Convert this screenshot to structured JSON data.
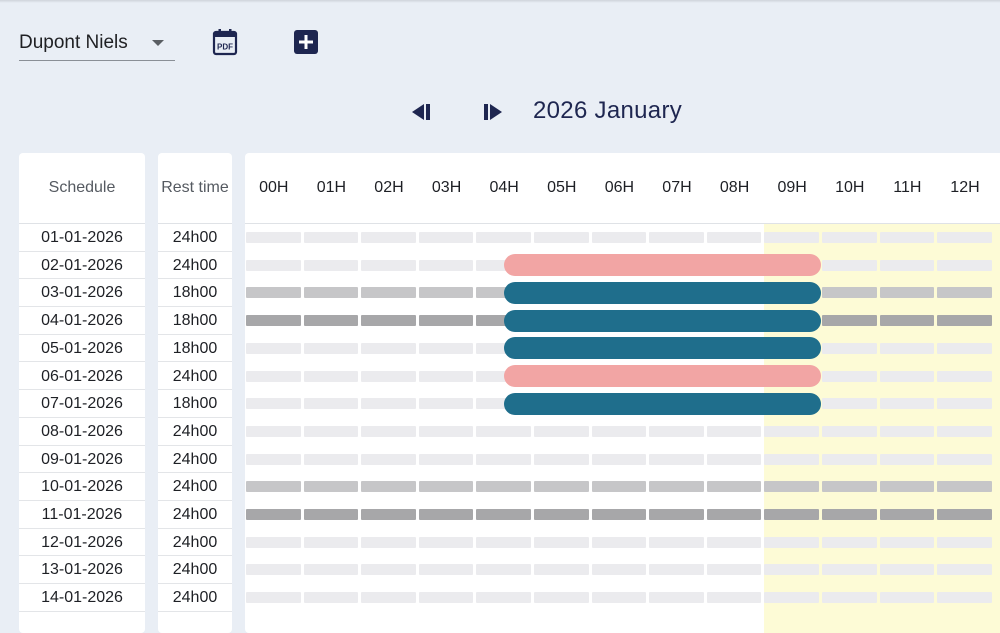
{
  "toolbar": {
    "employee": "Dupont Niels",
    "pdf_icon": "pdf-calendar-icon",
    "add_icon": "plus-square-icon",
    "pdf_label": "PDF"
  },
  "navigation": {
    "period": "2026 January",
    "prev_icon": "skip-previous-icon",
    "next_icon": "skip-next-icon"
  },
  "table": {
    "schedule_header": "Schedule",
    "rest_header": "Rest time",
    "hours": [
      "00H",
      "01H",
      "02H",
      "03H",
      "04H",
      "05H",
      "06H",
      "07H",
      "08H",
      "09H",
      "10H",
      "11H",
      "12H"
    ],
    "rows": [
      {
        "date": "01-01-2026",
        "rest": "24h00",
        "track": "light",
        "shift": null
      },
      {
        "date": "02-01-2026",
        "rest": "24h00",
        "track": "light",
        "shift": {
          "start": "04:30",
          "end": "10:00",
          "type": "leave"
        }
      },
      {
        "date": "03-01-2026",
        "rest": "18h00",
        "track": "mid",
        "shift": {
          "start": "04:30",
          "end": "10:00",
          "type": "work"
        }
      },
      {
        "date": "04-01-2026",
        "rest": "18h00",
        "track": "dark",
        "shift": {
          "start": "04:30",
          "end": "10:00",
          "type": "work"
        }
      },
      {
        "date": "05-01-2026",
        "rest": "18h00",
        "track": "light",
        "shift": {
          "start": "04:30",
          "end": "10:00",
          "type": "work"
        }
      },
      {
        "date": "06-01-2026",
        "rest": "24h00",
        "track": "light",
        "shift": {
          "start": "04:30",
          "end": "10:00",
          "type": "leave"
        }
      },
      {
        "date": "07-01-2026",
        "rest": "18h00",
        "track": "light",
        "shift": {
          "start": "04:30",
          "end": "10:00",
          "type": "work"
        }
      },
      {
        "date": "08-01-2026",
        "rest": "24h00",
        "track": "light",
        "shift": null
      },
      {
        "date": "09-01-2026",
        "rest": "24h00",
        "track": "light",
        "shift": null
      },
      {
        "date": "10-01-2026",
        "rest": "24h00",
        "track": "mid",
        "shift": null
      },
      {
        "date": "11-01-2026",
        "rest": "24h00",
        "track": "dark",
        "shift": null
      },
      {
        "date": "12-01-2026",
        "rest": "24h00",
        "track": "light",
        "shift": null
      },
      {
        "date": "13-01-2026",
        "rest": "24h00",
        "track": "light",
        "shift": null
      },
      {
        "date": "14-01-2026",
        "rest": "24h00",
        "track": "light",
        "shift": null
      }
    ]
  },
  "colors": {
    "work": "#1f6e8c",
    "leave": "#f2a5a4",
    "track_light": "#ebebee",
    "track_mid": "#c6c6c8",
    "track_dark": "#a7a7a9",
    "day_highlight": "#fdfbd6",
    "accent": "#1e2650"
  }
}
